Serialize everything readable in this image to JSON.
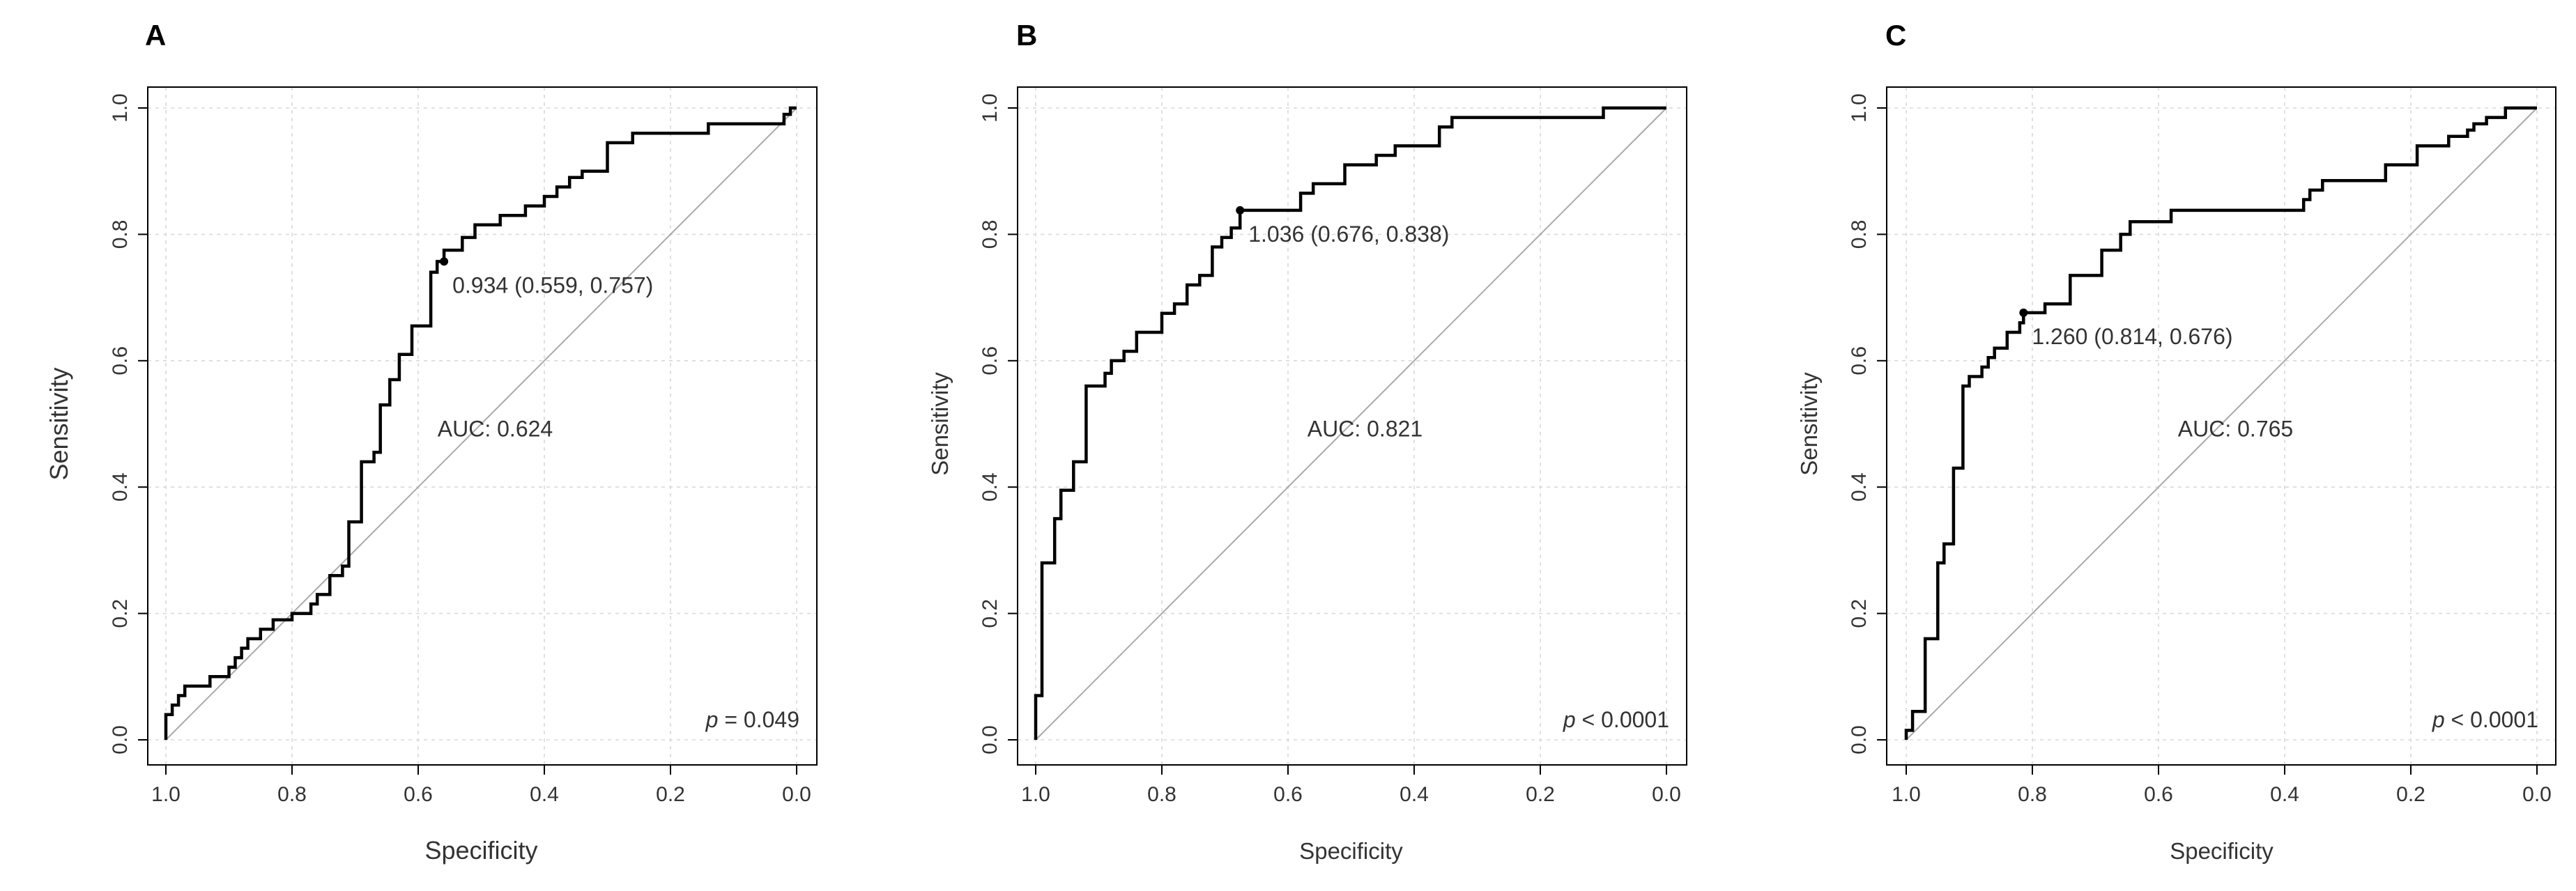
{
  "chart_data": [
    {
      "type": "line",
      "panel": "A",
      "xlabel": "Specificity",
      "ylabel": "Sensitivity",
      "xlim": [
        1.0,
        0.0
      ],
      "ylim": [
        0.0,
        1.0
      ],
      "x_ticks": [
        "1.0",
        "0.8",
        "0.6",
        "0.4",
        "0.2",
        "0.0"
      ],
      "y_ticks": [
        "0.0",
        "0.2",
        "0.4",
        "0.6",
        "0.8",
        "1.0"
      ],
      "grid": true,
      "auc_label": "AUC: 0.624",
      "p_symbol": "p",
      "p_text": " = 0.049",
      "threshold": {
        "spec": 0.559,
        "sens": 0.757,
        "label": "0.934 (0.559, 0.757)"
      },
      "specificity": [
        1.0,
        1.0,
        0.99,
        0.99,
        0.98,
        0.98,
        0.97,
        0.97,
        0.93,
        0.93,
        0.9,
        0.9,
        0.89,
        0.89,
        0.88,
        0.88,
        0.87,
        0.87,
        0.85,
        0.85,
        0.83,
        0.83,
        0.8,
        0.8,
        0.77,
        0.77,
        0.76,
        0.76,
        0.74,
        0.74,
        0.72,
        0.72,
        0.71,
        0.71,
        0.69,
        0.69,
        0.67,
        0.67,
        0.66,
        0.66,
        0.645,
        0.645,
        0.63,
        0.63,
        0.61,
        0.61,
        0.58,
        0.58,
        0.57,
        0.57,
        0.559,
        0.559,
        0.53,
        0.53,
        0.51,
        0.51,
        0.47,
        0.47,
        0.43,
        0.43,
        0.4,
        0.4,
        0.38,
        0.38,
        0.36,
        0.36,
        0.34,
        0.34,
        0.3,
        0.3,
        0.26,
        0.26,
        0.14,
        0.14,
        0.02,
        0.02,
        0.01,
        0.01,
        0.0
      ],
      "sensitivity": [
        0.0,
        0.04,
        0.04,
        0.055,
        0.055,
        0.07,
        0.07,
        0.085,
        0.085,
        0.1,
        0.1,
        0.115,
        0.115,
        0.13,
        0.13,
        0.145,
        0.145,
        0.16,
        0.16,
        0.175,
        0.175,
        0.19,
        0.19,
        0.2,
        0.2,
        0.215,
        0.215,
        0.23,
        0.23,
        0.26,
        0.26,
        0.275,
        0.275,
        0.345,
        0.345,
        0.44,
        0.44,
        0.455,
        0.455,
        0.53,
        0.53,
        0.57,
        0.57,
        0.61,
        0.61,
        0.655,
        0.655,
        0.74,
        0.74,
        0.757,
        0.757,
        0.775,
        0.775,
        0.795,
        0.795,
        0.815,
        0.815,
        0.83,
        0.83,
        0.845,
        0.845,
        0.86,
        0.86,
        0.875,
        0.875,
        0.89,
        0.89,
        0.9,
        0.9,
        0.945,
        0.945,
        0.96,
        0.96,
        0.975,
        0.975,
        0.99,
        0.99,
        1.0,
        1.0
      ]
    },
    {
      "type": "line",
      "panel": "B",
      "xlabel": "Specificity",
      "ylabel": "Sensitivity",
      "xlim": [
        1.0,
        0.0
      ],
      "ylim": [
        0.0,
        1.0
      ],
      "x_ticks": [
        "1.0",
        "0.8",
        "0.6",
        "0.4",
        "0.2",
        "0.0"
      ],
      "y_ticks": [
        "0.0",
        "0.2",
        "0.4",
        "0.6",
        "0.8",
        "1.0"
      ],
      "grid": true,
      "auc_label": "AUC: 0.821",
      "p_symbol": "p",
      "p_text": " < 0.0001",
      "threshold": {
        "spec": 0.676,
        "sens": 0.838,
        "label": "1.036 (0.676, 0.838)"
      },
      "specificity": [
        1.0,
        1.0,
        0.99,
        0.99,
        0.97,
        0.97,
        0.96,
        0.96,
        0.94,
        0.94,
        0.92,
        0.92,
        0.89,
        0.89,
        0.88,
        0.88,
        0.86,
        0.86,
        0.84,
        0.84,
        0.8,
        0.8,
        0.78,
        0.78,
        0.76,
        0.76,
        0.74,
        0.74,
        0.72,
        0.72,
        0.705,
        0.705,
        0.69,
        0.69,
        0.676,
        0.676,
        0.58,
        0.58,
        0.56,
        0.56,
        0.51,
        0.51,
        0.46,
        0.46,
        0.43,
        0.43,
        0.36,
        0.36,
        0.34,
        0.34,
        0.1,
        0.1,
        0.0
      ],
      "sensitivity": [
        0.0,
        0.07,
        0.07,
        0.28,
        0.28,
        0.35,
        0.35,
        0.395,
        0.395,
        0.44,
        0.44,
        0.56,
        0.56,
        0.58,
        0.58,
        0.6,
        0.6,
        0.615,
        0.615,
        0.645,
        0.645,
        0.675,
        0.675,
        0.69,
        0.69,
        0.72,
        0.72,
        0.735,
        0.735,
        0.78,
        0.78,
        0.795,
        0.795,
        0.81,
        0.81,
        0.838,
        0.838,
        0.865,
        0.865,
        0.88,
        0.88,
        0.91,
        0.91,
        0.925,
        0.925,
        0.94,
        0.94,
        0.97,
        0.97,
        0.985,
        0.985,
        1.0,
        1.0
      ]
    },
    {
      "type": "line",
      "panel": "C",
      "xlabel": "Specificity",
      "ylabel": "Sensitivity",
      "xlim": [
        1.0,
        0.0
      ],
      "ylim": [
        0.0,
        1.0
      ],
      "x_ticks": [
        "1.0",
        "0.8",
        "0.6",
        "0.4",
        "0.2",
        "0.0"
      ],
      "y_ticks": [
        "0.0",
        "0.2",
        "0.4",
        "0.6",
        "0.8",
        "1.0"
      ],
      "grid": true,
      "auc_label": "AUC: 0.765",
      "p_symbol": "p",
      "p_text": " < 0.0001",
      "threshold": {
        "spec": 0.814,
        "sens": 0.676,
        "label": "1.260 (0.814, 0.676)"
      },
      "specificity": [
        1.0,
        1.0,
        0.99,
        0.99,
        0.97,
        0.97,
        0.95,
        0.95,
        0.94,
        0.94,
        0.925,
        0.925,
        0.91,
        0.91,
        0.9,
        0.9,
        0.88,
        0.88,
        0.87,
        0.87,
        0.86,
        0.86,
        0.84,
        0.84,
        0.82,
        0.82,
        0.814,
        0.814,
        0.78,
        0.78,
        0.74,
        0.74,
        0.69,
        0.69,
        0.66,
        0.66,
        0.645,
        0.645,
        0.58,
        0.58,
        0.37,
        0.37,
        0.36,
        0.36,
        0.34,
        0.34,
        0.24,
        0.24,
        0.19,
        0.19,
        0.14,
        0.14,
        0.11,
        0.11,
        0.1,
        0.1,
        0.08,
        0.08,
        0.05,
        0.05,
        0.02,
        0.02,
        0.0
      ],
      "sensitivity": [
        0.0,
        0.015,
        0.015,
        0.045,
        0.045,
        0.16,
        0.16,
        0.28,
        0.28,
        0.31,
        0.31,
        0.43,
        0.43,
        0.56,
        0.56,
        0.575,
        0.575,
        0.59,
        0.59,
        0.605,
        0.605,
        0.62,
        0.62,
        0.645,
        0.645,
        0.66,
        0.66,
        0.676,
        0.676,
        0.69,
        0.69,
        0.735,
        0.735,
        0.775,
        0.775,
        0.8,
        0.8,
        0.82,
        0.82,
        0.838,
        0.838,
        0.855,
        0.855,
        0.87,
        0.87,
        0.885,
        0.885,
        0.91,
        0.91,
        0.94,
        0.94,
        0.955,
        0.955,
        0.965,
        0.965,
        0.975,
        0.975,
        0.985,
        0.985,
        1.0,
        1.0,
        1.0,
        1.0
      ]
    }
  ]
}
